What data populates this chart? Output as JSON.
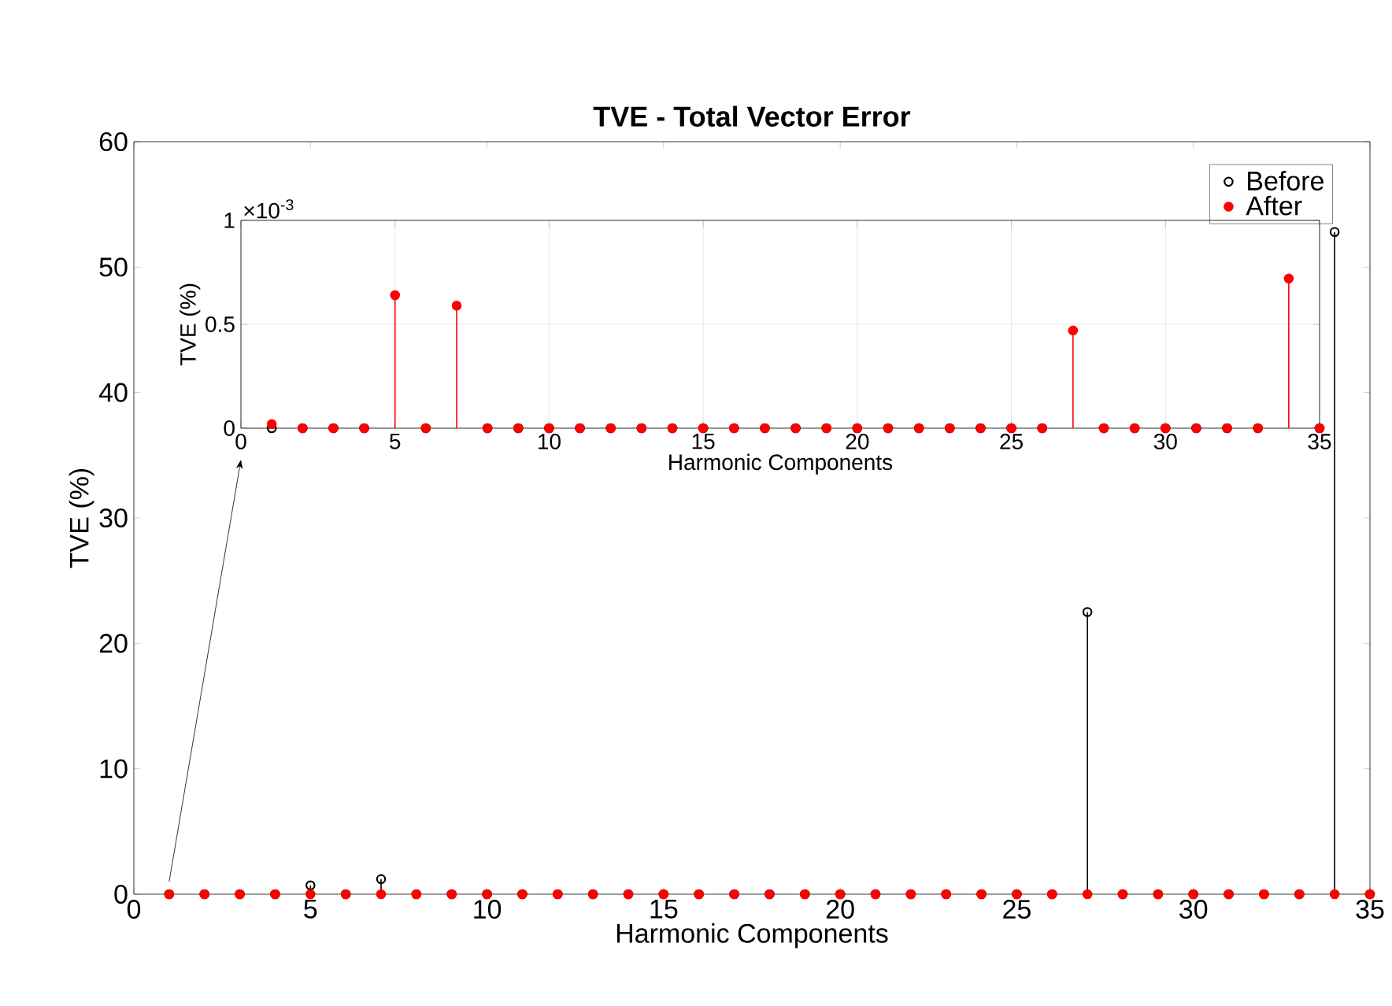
{
  "chart_data": [
    {
      "type": "lollipop",
      "title": "TVE - Total Vector Error",
      "xlabel": "Harmonic Components",
      "ylabel": "TVE (%)",
      "x": [
        1,
        2,
        3,
        4,
        5,
        6,
        7,
        8,
        9,
        10,
        11,
        12,
        13,
        14,
        15,
        16,
        17,
        18,
        19,
        20,
        21,
        22,
        23,
        24,
        25,
        26,
        27,
        28,
        29,
        30,
        31,
        32,
        33,
        34,
        35
      ],
      "series": [
        {
          "name": "Before",
          "color": "#000000",
          "marker": "circle",
          "values": [
            0,
            0,
            0,
            0,
            0.7,
            0,
            1.2,
            0,
            0,
            0,
            0,
            0,
            0,
            0,
            0,
            0,
            0,
            0,
            0,
            0,
            0,
            0,
            0,
            0,
            0,
            0,
            22.5,
            0,
            0,
            0,
            0,
            0,
            0,
            52.8,
            0
          ]
        },
        {
          "name": "After",
          "color": "#ff0000",
          "marker": "circle",
          "values": [
            0,
            0,
            0,
            0,
            0,
            0,
            0,
            0,
            0,
            0,
            0,
            0,
            0,
            0,
            0,
            0,
            0,
            0,
            0,
            0,
            0,
            0,
            0,
            0,
            0,
            0,
            0,
            0,
            0,
            0,
            0,
            0,
            0,
            0,
            0
          ]
        }
      ],
      "xlim": [
        0,
        35
      ],
      "xticks": [
        0,
        5,
        10,
        15,
        20,
        25,
        30,
        35
      ],
      "ylim": [
        0,
        60
      ],
      "yticks": [
        0,
        10,
        20,
        30,
        40,
        50,
        60
      ],
      "grid": false,
      "legend": "top right"
    },
    {
      "type": "lollipop",
      "xlabel": "Harmonic Components",
      "ylabel": "TVE (%)",
      "annotations": [
        "×10$^{-3}$"
      ],
      "x": [
        1,
        2,
        3,
        4,
        5,
        6,
        7,
        8,
        9,
        10,
        11,
        12,
        13,
        14,
        15,
        16,
        17,
        18,
        19,
        20,
        21,
        22,
        23,
        24,
        25,
        26,
        27,
        28,
        29,
        30,
        31,
        32,
        33,
        34,
        35
      ],
      "series": [
        {
          "color": "#000000",
          "marker": "circle",
          "values": [
            0,
            0,
            0,
            0,
            null,
            0,
            null,
            0,
            0,
            0,
            0,
            0,
            0,
            0,
            0,
            0,
            0,
            0,
            0,
            0,
            0,
            0,
            0,
            0,
            0,
            0,
            null,
            0,
            0,
            0,
            0,
            0,
            0,
            null,
            0
          ]
        },
        {
          "color": "#ff0000",
          "marker": "circle",
          "values": [
            0.02,
            0,
            0,
            0,
            0.64,
            0,
            0.59,
            0,
            0,
            0,
            0,
            0,
            0,
            0,
            0,
            0,
            0,
            0,
            0,
            0,
            0,
            0,
            0,
            0,
            0,
            0,
            0.47,
            0,
            0,
            0,
            0,
            0,
            0,
            0.72,
            0
          ]
        }
      ],
      "xlim": [
        0,
        35
      ],
      "xticks": [
        0,
        5,
        10,
        15,
        20,
        25,
        30,
        35
      ],
      "ylim": [
        0,
        1
      ],
      "yticks": [
        0,
        0.5,
        1
      ],
      "grid": true,
      "legend": false
    }
  ]
}
